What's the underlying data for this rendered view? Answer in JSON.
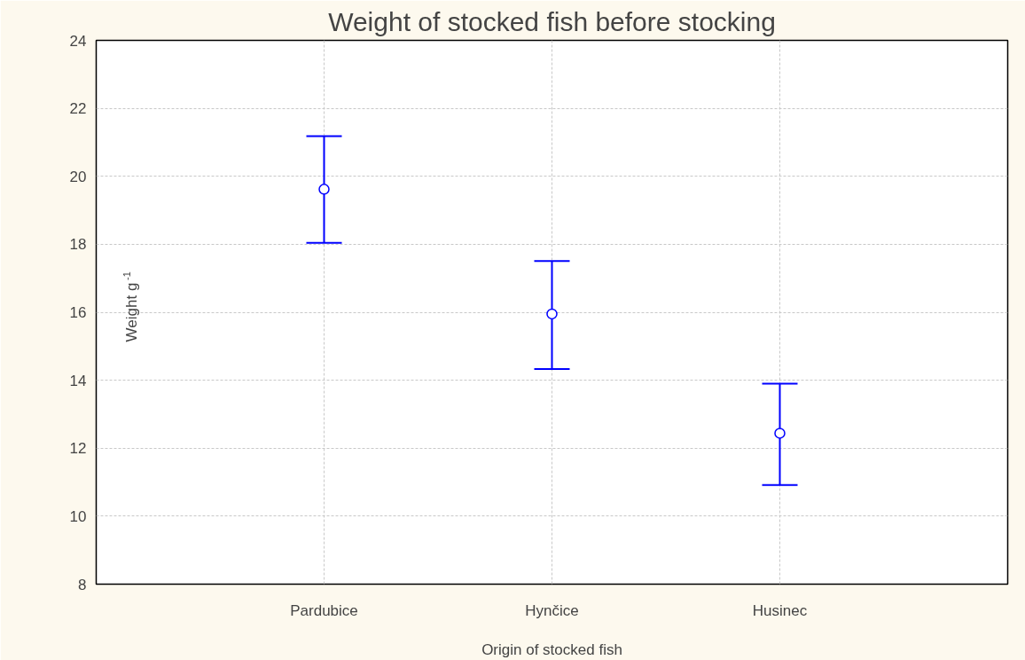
{
  "chart_data": {
    "type": "scatter",
    "title": "Weight of stocked fish before stocking",
    "xlabel": "Origin of stocked fish",
    "ylabel": "Weight g$^{-1}$",
    "categories": [
      "Pardubice",
      "Hynčice",
      "Husinec"
    ],
    "series": [
      {
        "color": "#0000ff",
        "values": [
          19.62,
          15.95,
          12.44
        ],
        "errors": [
          [
            18.04,
            21.18
          ],
          [
            14.33,
            17.51
          ],
          [
            10.92,
            13.9
          ]
        ]
      }
    ],
    "ylim": [
      8,
      24
    ],
    "yticks": [
      8,
      10,
      12,
      14,
      16,
      18,
      20,
      22,
      24
    ],
    "grid": true,
    "marker": "circle"
  }
}
